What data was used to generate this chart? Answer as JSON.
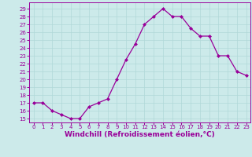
{
  "x": [
    0,
    1,
    2,
    3,
    4,
    5,
    6,
    7,
    8,
    9,
    10,
    11,
    12,
    13,
    14,
    15,
    16,
    17,
    18,
    19,
    20,
    21,
    22,
    23
  ],
  "y": [
    17,
    17,
    16,
    15.5,
    15,
    15,
    16.5,
    17,
    17.5,
    20,
    22.5,
    24.5,
    27,
    28,
    29,
    28,
    28,
    26.5,
    25.5,
    25.5,
    23,
    23,
    21,
    20.5
  ],
  "line_color": "#990099",
  "marker": "D",
  "markersize": 2.0,
  "linewidth": 0.9,
  "xlabel": "Windchill (Refroidissement éolien,°C)",
  "xlabel_fontsize": 6.5,
  "ylim": [
    14.5,
    29.8
  ],
  "xlim": [
    -0.5,
    23.5
  ],
  "yticks": [
    15,
    16,
    17,
    18,
    19,
    20,
    21,
    22,
    23,
    24,
    25,
    26,
    27,
    28,
    29
  ],
  "xticks": [
    0,
    1,
    2,
    3,
    4,
    5,
    6,
    7,
    8,
    9,
    10,
    11,
    12,
    13,
    14,
    15,
    16,
    17,
    18,
    19,
    20,
    21,
    22,
    23
  ],
  "tick_fontsize": 5.0,
  "grid_color": "#b0d8d8",
  "bg_color": "#cceaea",
  "plot_bg_color": "#cceaea",
  "fig_bg_color": "#cceaea"
}
